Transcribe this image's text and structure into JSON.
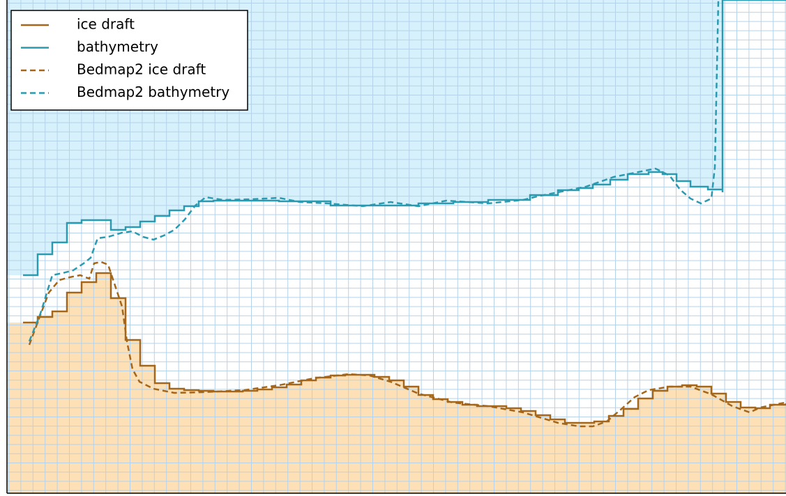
{
  "chart_data": {
    "type": "line",
    "xlim": [
      10,
      1127
    ],
    "ylim": [
      708,
      0
    ],
    "legend": "upper left",
    "series": [
      {
        "name": "ice draft",
        "color": "#a4661a",
        "dash": false,
        "drawstyle": "steps-post",
        "fill": "below",
        "fill_color": "#fde0b6",
        "x": [
          33,
          54,
          75,
          96,
          117,
          138,
          159,
          180,
          201,
          222,
          243,
          264,
          285,
          306,
          327,
          348,
          369,
          390,
          411,
          432,
          453,
          474,
          495,
          516,
          537,
          558,
          579,
          600,
          621,
          642,
          663,
          684,
          705,
          726,
          747,
          768,
          789,
          810,
          831,
          852,
          873,
          894,
          915,
          936,
          957,
          978,
          999,
          1020,
          1041,
          1062,
          1083,
          1104,
          1127
        ],
        "values": [
          463,
          455,
          447,
          420,
          405,
          392,
          428,
          488,
          525,
          550,
          558,
          560,
          561,
          562,
          562,
          561,
          559,
          556,
          552,
          546,
          542,
          539,
          538,
          538,
          541,
          546,
          555,
          567,
          573,
          577,
          581,
          583,
          583,
          586,
          590,
          596,
          602,
          607,
          607,
          605,
          597,
          587,
          572,
          561,
          555,
          553,
          555,
          565,
          577,
          585,
          586,
          581,
          579
        ]
      },
      {
        "name": "bathymetry",
        "color": "#2a9ab0",
        "dash": false,
        "drawstyle": "steps-post",
        "fill": "above",
        "fill_color": "#d6f1fc",
        "x": [
          33,
          54,
          75,
          96,
          117,
          138,
          159,
          180,
          201,
          222,
          243,
          264,
          285,
          306,
          350,
          400,
          474,
          520,
          600,
          650,
          700,
          760,
          800,
          830,
          850,
          875,
          900,
          930,
          950,
          970,
          990,
          1015,
          1036,
          1036
        ],
        "values": [
          395,
          365,
          348,
          320,
          316,
          316,
          330,
          326,
          318,
          310,
          302,
          296,
          289,
          288,
          288,
          289,
          295,
          295,
          292,
          290,
          287,
          280,
          273,
          270,
          265,
          258,
          250,
          247,
          250,
          260,
          268,
          272,
          276,
          0
        ]
      },
      {
        "name": "Bedmap2 ice draft",
        "color": "#a4661a",
        "dash": true,
        "x": [
          42,
          55,
          70,
          85,
          100,
          115,
          128,
          135,
          145,
          155,
          165,
          175,
          182,
          190,
          200,
          220,
          250,
          290,
          350,
          400,
          450,
          500,
          530,
          560,
          600,
          650,
          700,
          750,
          800,
          830,
          850,
          870,
          890,
          910,
          930,
          960,
          990,
          1020,
          1050,
          1075,
          1090,
          1110,
          1125
        ],
        "values": [
          495,
          460,
          420,
          402,
          398,
          395,
          400,
          378,
          376,
          380,
          410,
          440,
          490,
          530,
          548,
          558,
          564,
          563,
          560,
          553,
          543,
          537,
          539,
          548,
          565,
          578,
          583,
          592,
          607,
          612,
          612,
          605,
          588,
          570,
          560,
          555,
          555,
          566,
          583,
          592,
          585,
          581,
          578
        ]
      },
      {
        "name": "Bedmap2 bathymetry",
        "color": "#2a9ab0",
        "dash": true,
        "x": [
          42,
          58,
          75,
          90,
          105,
          120,
          130,
          140,
          155,
          175,
          190,
          205,
          220,
          235,
          250,
          265,
          280,
          295,
          320,
          360,
          400,
          430,
          470,
          520,
          560,
          600,
          640,
          700,
          750,
          770,
          800,
          840,
          880,
          910,
          940,
          960,
          975,
          990,
          1005,
          1020,
          1025,
          1030
        ],
        "values": [
          490,
          450,
          395,
          392,
          388,
          378,
          370,
          342,
          340,
          334,
          332,
          340,
          344,
          338,
          330,
          315,
          295,
          283,
          287,
          286,
          284,
          290,
          292,
          296,
          290,
          296,
          288,
          292,
          287,
          282,
          276,
          268,
          254,
          248,
          242,
          252,
          272,
          285,
          292,
          285,
          240,
          0
        ]
      }
    ]
  }
}
